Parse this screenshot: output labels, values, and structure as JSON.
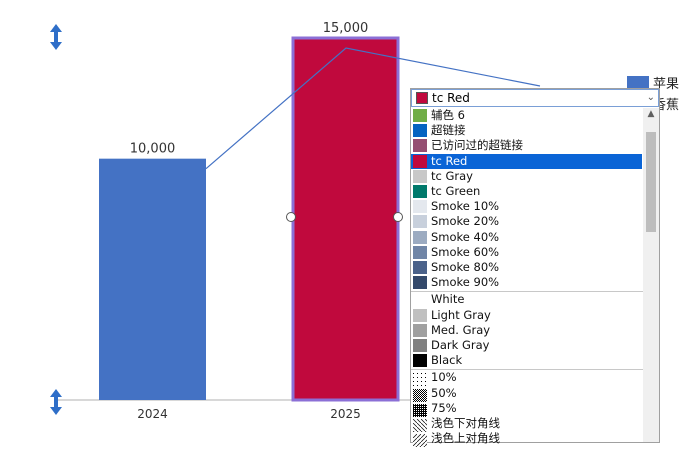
{
  "chart_data": {
    "type": "bar",
    "categories": [
      "2024",
      "2025"
    ],
    "series": [
      {
        "name": "苹果",
        "values": [
          10000,
          15000
        ]
      }
    ],
    "data_labels": [
      "10,000",
      "15,000"
    ],
    "bar_colors": [
      "#4472c4",
      "#c0093d"
    ],
    "legend": [
      "苹果",
      "香蕉"
    ],
    "legend_position": "right",
    "ylim": [
      0,
      15000
    ]
  },
  "dropdown": {
    "selected": {
      "label": "tc Red",
      "color": "#c0093d"
    },
    "items": [
      {
        "label": "辅色 6",
        "color": "#70ad47"
      },
      {
        "label": "超链接",
        "color": "#0563c1"
      },
      {
        "label": "已访问过的超链接",
        "color": "#954f72"
      },
      {
        "label": "tc Red",
        "color": "#c0093d",
        "selected": true
      },
      {
        "label": "tc Gray",
        "color": "#c8c8c8"
      },
      {
        "label": "tc Green",
        "color": "#00796b"
      },
      {
        "label": "Smoke 10%",
        "color": "#e4e8ee"
      },
      {
        "label": "Smoke 20%",
        "color": "#c8d0dc"
      },
      {
        "label": "Smoke 40%",
        "color": "#9cabc1"
      },
      {
        "label": "Smoke 60%",
        "color": "#7085a6"
      },
      {
        "label": "Smoke 80%",
        "color": "#4b628a"
      },
      {
        "label": "Smoke 90%",
        "color": "#34496b"
      },
      {
        "label": "White",
        "color": "#ffffff"
      },
      {
        "label": "Light Gray",
        "color": "#c0c0c0"
      },
      {
        "label": "Med. Gray",
        "color": "#a0a0a0"
      },
      {
        "label": "Dark Gray",
        "color": "#808080"
      },
      {
        "label": "Black",
        "color": "#000000"
      },
      {
        "label": "10%",
        "color": "pattern-10"
      },
      {
        "label": "50%",
        "color": "pattern-50"
      },
      {
        "label": "75%",
        "color": "pattern-75"
      },
      {
        "label": "浅色下对角线",
        "color": "pattern-diag-down"
      },
      {
        "label": "浅色上对角线",
        "color": "pattern-diag-up"
      }
    ]
  }
}
